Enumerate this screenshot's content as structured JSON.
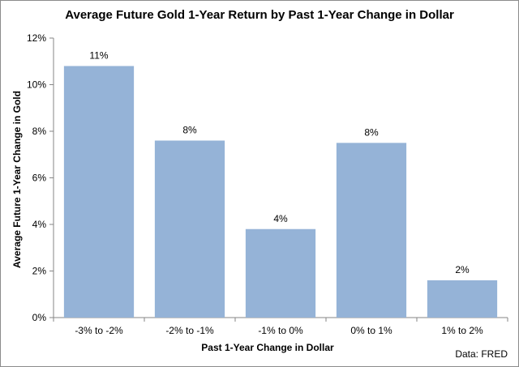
{
  "chart_data": {
    "type": "bar",
    "title": "Average Future Gold 1-Year Return by Past 1-Year Change in Dollar",
    "xlabel": "Past 1-Year Change in Dollar",
    "ylabel": "Average Future 1-Year Change in  Gold",
    "categories": [
      "-3% to -2%",
      "-2% to -1%",
      "-1% to 0%",
      "0% to 1%",
      "1% to 2%"
    ],
    "values": [
      10.8,
      7.6,
      3.8,
      7.5,
      1.6
    ],
    "data_labels": [
      "11%",
      "8%",
      "4%",
      "8%",
      "2%"
    ],
    "ylim": [
      0,
      12
    ],
    "yticks": [
      0,
      2,
      4,
      6,
      8,
      10,
      12
    ],
    "ytick_labels": [
      "0%",
      "2%",
      "4%",
      "6%",
      "8%",
      "10%",
      "12%"
    ],
    "grid": false,
    "legend": "none",
    "bar_color": "#95b3d7",
    "source": "Data: FRED"
  }
}
